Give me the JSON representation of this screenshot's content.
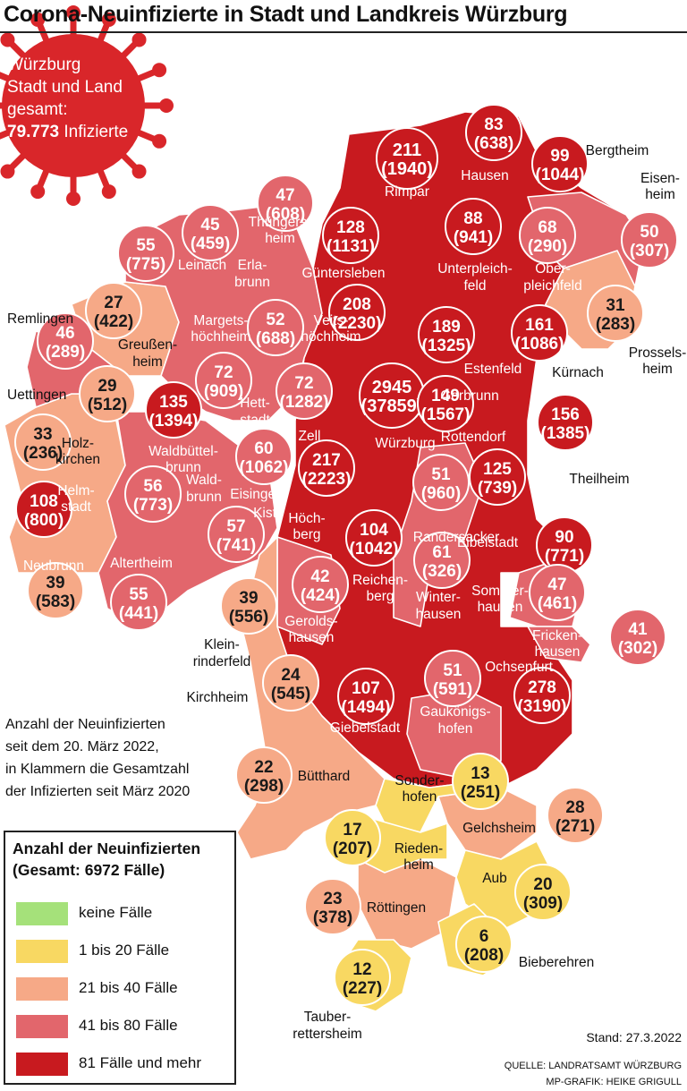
{
  "title": "Corona-Neuinfizierte in Stadt und Landkreis Würzburg",
  "total_box": {
    "line1": "Würzburg",
    "line2": "Stadt und Land",
    "line3": "gesamt:",
    "number": "79.773",
    "suffix": "Infizierte"
  },
  "note": {
    "line1": "Anzahl der Neuinfizierten",
    "line2": "seit dem 20. März 2022,",
    "line3": "in Klammern die Gesamtzahl",
    "line4": "der Infizierten seit März 2020"
  },
  "legend": {
    "title_line1": "Anzahl der Neuinfizierten",
    "title_line2": "(Gesamt: 6972 Fälle)",
    "items": [
      {
        "label": "keine Fälle",
        "color": "#a5e17a"
      },
      {
        "label": "1 bis 20 Fälle",
        "color": "#f8d862"
      },
      {
        "label": "21 bis 40 Fälle",
        "color": "#f6a987"
      },
      {
        "label": "41 bis 80 Fälle",
        "color": "#e2666c"
      },
      {
        "label": "81 Fälle und mehr",
        "color": "#c81a1f"
      }
    ]
  },
  "stand": "Stand: 27.3.2022",
  "source": "QUELLE: LANDRATSAMT WÜRZBURG",
  "graphic": "MP-GRAFIK: HEIKE GRIGULL",
  "colors": {
    "virus": "#d9262a",
    "dark_red": "#c81a1f",
    "medium_red": "#e2666c",
    "salmon": "#f6a987",
    "yellow": "#f8d862",
    "bubble_outline": "#ffffff"
  },
  "map_labels": [
    {
      "name": "Rimpar",
      "color": "white"
    },
    {
      "name": "Hausen",
      "color": "white"
    },
    {
      "name": "Bergtheim",
      "color": "black"
    },
    {
      "name": "Eisen-",
      "color": "black"
    },
    {
      "name": "heim",
      "color": "black"
    },
    {
      "name": "Thüngers-",
      "color": "white"
    },
    {
      "name": "heim",
      "color": "white"
    },
    {
      "name": "Güntersleben",
      "color": "white"
    },
    {
      "name": "Unterpleich-",
      "color": "white"
    },
    {
      "name": "feld",
      "color": "white"
    },
    {
      "name": "Ober-",
      "color": "white"
    },
    {
      "name": "pleichfeld",
      "color": "white"
    },
    {
      "name": "Leinach",
      "color": "white"
    },
    {
      "name": "Erla-",
      "color": "white"
    },
    {
      "name": "brunn",
      "color": "white"
    },
    {
      "name": "Remlingen",
      "color": "black"
    },
    {
      "name": "Margets-",
      "color": "white"
    },
    {
      "name": "höchheim",
      "color": "white"
    },
    {
      "name": "Veits-",
      "color": "white"
    },
    {
      "name": "höchheim",
      "color": "white"
    },
    {
      "name": "Prossels-",
      "color": "black"
    },
    {
      "name": "heim",
      "color": "black"
    },
    {
      "name": "Greußen-",
      "color": "black"
    },
    {
      "name": "heim",
      "color": "black"
    },
    {
      "name": "Estenfeld",
      "color": "white"
    },
    {
      "name": "Kürnach",
      "color": "black"
    },
    {
      "name": "Uettingen",
      "color": "black"
    },
    {
      "name": "Hett-",
      "color": "white"
    },
    {
      "name": "stadt",
      "color": "white"
    },
    {
      "name": "Gerbrunn",
      "color": "white"
    },
    {
      "name": "Holz-",
      "color": "black"
    },
    {
      "name": "kirchen",
      "color": "black"
    },
    {
      "name": "Waldbüttel-",
      "color": "white"
    },
    {
      "name": "brunn",
      "color": "white"
    },
    {
      "name": "Zell",
      "color": "white"
    },
    {
      "name": "Würzburg",
      "color": "white"
    },
    {
      "name": "Rottendorf",
      "color": "white"
    },
    {
      "name": "Theilheim",
      "color": "black"
    },
    {
      "name": "Helm-",
      "color": "white"
    },
    {
      "name": "stadt",
      "color": "white"
    },
    {
      "name": "Wald-",
      "color": "white"
    },
    {
      "name": "brunn",
      "color": "white"
    },
    {
      "name": "Eisingen",
      "color": "white"
    },
    {
      "name": "Randersacker",
      "color": "white"
    },
    {
      "name": "Kist",
      "color": "white"
    },
    {
      "name": "Höch-",
      "color": "white"
    },
    {
      "name": "berg",
      "color": "white"
    },
    {
      "name": "Eibelstadt",
      "color": "white"
    },
    {
      "name": "Neubrunn",
      "color": "white"
    },
    {
      "name": "Altertheim",
      "color": "white"
    },
    {
      "name": "Reichen-",
      "color": "white"
    },
    {
      "name": "berg",
      "color": "white"
    },
    {
      "name": "Sommer-",
      "color": "white"
    },
    {
      "name": "hausen",
      "color": "white"
    },
    {
      "name": "Winter-",
      "color": "white"
    },
    {
      "name": "hausen",
      "color": "white"
    },
    {
      "name": "Gerolds-",
      "color": "white"
    },
    {
      "name": "hausen",
      "color": "white"
    },
    {
      "name": "Fricken-",
      "color": "white"
    },
    {
      "name": "hausen",
      "color": "white"
    },
    {
      "name": "Klein-",
      "color": "black"
    },
    {
      "name": "rinderfeld",
      "color": "black"
    },
    {
      "name": "Kirchheim",
      "color": "black"
    },
    {
      "name": "Ochsenfurt",
      "color": "white"
    },
    {
      "name": "Gaukönigs-",
      "color": "white"
    },
    {
      "name": "hofen",
      "color": "white"
    },
    {
      "name": "Giebelstadt",
      "color": "white"
    },
    {
      "name": "Bütthard",
      "color": "black"
    },
    {
      "name": "Sonder-",
      "color": "black"
    },
    {
      "name": "hofen",
      "color": "black"
    },
    {
      "name": "Gelchsheim",
      "color": "black"
    },
    {
      "name": "Rieden-",
      "color": "black"
    },
    {
      "name": "heim",
      "color": "black"
    },
    {
      "name": "Aub",
      "color": "black"
    },
    {
      "name": "Röttingen",
      "color": "black"
    },
    {
      "name": "Bieberehren",
      "color": "black"
    },
    {
      "name": "Tauber-",
      "color": "black"
    },
    {
      "name": "rettersheim",
      "color": "black"
    }
  ],
  "bubbles": [
    {
      "new": "211",
      "total": "(1940)",
      "level": "dark"
    },
    {
      "new": "83",
      "total": "(638)",
      "level": "dark"
    },
    {
      "new": "99",
      "total": "(1044)",
      "level": "dark"
    },
    {
      "new": "47",
      "total": "(608)",
      "level": "medium"
    },
    {
      "new": "45",
      "total": "(459)",
      "level": "medium"
    },
    {
      "new": "128",
      "total": "(1131)",
      "level": "dark"
    },
    {
      "new": "88",
      "total": "(941)",
      "level": "dark"
    },
    {
      "new": "68",
      "total": "(290)",
      "level": "medium"
    },
    {
      "new": "50",
      "total": "(307)",
      "level": "medium"
    },
    {
      "new": "55",
      "total": "(775)",
      "level": "medium"
    },
    {
      "new": "27",
      "total": "(422)",
      "level": "salmon"
    },
    {
      "new": "52",
      "total": "(688)",
      "level": "medium"
    },
    {
      "new": "208",
      "total": "(2230)",
      "level": "dark"
    },
    {
      "new": "31",
      "total": "(283)",
      "level": "salmon"
    },
    {
      "new": "189",
      "total": "(1325)",
      "level": "dark"
    },
    {
      "new": "161",
      "total": "(1086)",
      "level": "dark"
    },
    {
      "new": "46",
      "total": "(289)",
      "level": "medium"
    },
    {
      "new": "72",
      "total": "(909)",
      "level": "medium"
    },
    {
      "new": "72",
      "total": "(1282)",
      "level": "medium"
    },
    {
      "new": "2945",
      "total": "(37859)",
      "level": "dark"
    },
    {
      "new": "149",
      "total": "(1567)",
      "level": "dark"
    },
    {
      "new": "29",
      "total": "(512)",
      "level": "salmon"
    },
    {
      "new": "135",
      "total": "(1394)",
      "level": "dark"
    },
    {
      "new": "156",
      "total": "(1385)",
      "level": "dark"
    },
    {
      "new": "33",
      "total": "(236)",
      "level": "salmon"
    },
    {
      "new": "60",
      "total": "(1062)",
      "level": "medium"
    },
    {
      "new": "217",
      "total": "(2223)",
      "level": "dark"
    },
    {
      "new": "51",
      "total": "(960)",
      "level": "medium"
    },
    {
      "new": "125",
      "total": "(739)",
      "level": "dark"
    },
    {
      "new": "108",
      "total": "(800)",
      "level": "dark"
    },
    {
      "new": "56",
      "total": "(773)",
      "level": "medium"
    },
    {
      "new": "90",
      "total": "(771)",
      "level": "dark"
    },
    {
      "new": "57",
      "total": "(741)",
      "level": "medium"
    },
    {
      "new": "104",
      "total": "(1042)",
      "level": "dark"
    },
    {
      "new": "61",
      "total": "(326)",
      "level": "medium"
    },
    {
      "new": "42",
      "total": "(424)",
      "level": "medium"
    },
    {
      "new": "47",
      "total": "(461)",
      "level": "medium"
    },
    {
      "new": "39",
      "total": "(583)",
      "level": "salmon"
    },
    {
      "new": "55",
      "total": "(441)",
      "level": "medium"
    },
    {
      "new": "39",
      "total": "(556)",
      "level": "salmon"
    },
    {
      "new": "41",
      "total": "(302)",
      "level": "medium"
    },
    {
      "new": "24",
      "total": "(545)",
      "level": "salmon"
    },
    {
      "new": "107",
      "total": "(1494)",
      "level": "dark"
    },
    {
      "new": "51",
      "total": "(591)",
      "level": "medium"
    },
    {
      "new": "278",
      "total": "(3190)",
      "level": "dark"
    },
    {
      "new": "22",
      "total": "(298)",
      "level": "salmon"
    },
    {
      "new": "13",
      "total": "(251)",
      "level": "yellow"
    },
    {
      "new": "28",
      "total": "(271)",
      "level": "salmon"
    },
    {
      "new": "17",
      "total": "(207)",
      "level": "yellow"
    },
    {
      "new": "20",
      "total": "(309)",
      "level": "yellow"
    },
    {
      "new": "23",
      "total": "(378)",
      "level": "salmon"
    },
    {
      "new": "6",
      "total": "(208)",
      "level": "yellow"
    },
    {
      "new": "12",
      "total": "(227)",
      "level": "yellow"
    }
  ]
}
